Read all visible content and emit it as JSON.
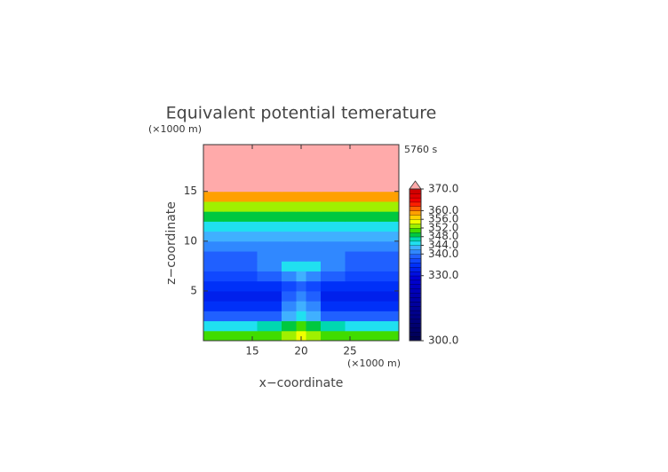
{
  "chart_data": {
    "type": "contour",
    "title": "Equivalent potential temerature",
    "time_label": "5760 s",
    "x_label": "x−coordinate",
    "y_label": "z−coordinate",
    "x_unit": "(×1000 m)",
    "y_unit": "(×1000 m)",
    "xlim": [
      10,
      30
    ],
    "ylim": [
      0,
      19.7
    ],
    "xticks": [
      15,
      20,
      25
    ],
    "yticks": [
      5,
      10,
      15
    ],
    "x": [
      10,
      14,
      17,
      19,
      20,
      21,
      23,
      26,
      30
    ],
    "z": [
      0.5,
      1.5,
      2.5,
      3.5,
      4.5,
      5.5,
      6.5,
      7.5,
      8.5,
      9.5,
      10.5,
      11.5,
      12.5,
      13.5,
      14.5,
      15.5,
      16.5,
      17.5,
      18.5,
      19.5
    ],
    "values": [
      [
        351,
        351,
        351,
        353,
        355,
        353,
        351,
        351,
        351
      ],
      [
        344,
        344,
        346,
        348,
        350,
        348,
        346,
        344,
        344
      ],
      [
        338,
        338,
        339,
        342,
        344,
        342,
        339,
        338,
        338
      ],
      [
        334,
        334,
        335,
        340,
        342,
        340,
        335,
        334,
        334
      ],
      [
        332,
        332,
        333,
        338,
        341,
        338,
        333,
        332,
        332
      ],
      [
        334,
        334,
        335,
        337,
        338,
        337,
        335,
        334,
        334
      ],
      [
        336,
        336,
        338,
        341,
        342,
        341,
        338,
        336,
        336
      ],
      [
        338,
        338,
        340,
        344,
        345,
        344,
        340,
        338,
        338
      ],
      [
        338,
        339,
        340,
        341,
        341,
        341,
        340,
        339,
        338
      ],
      [
        340,
        340,
        341,
        341,
        341,
        341,
        341,
        340,
        340
      ],
      [
        343,
        343,
        343,
        343,
        343,
        343,
        343,
        343,
        343
      ],
      [
        345,
        345,
        345,
        345,
        345,
        345,
        345,
        345,
        345
      ],
      [
        348,
        348,
        348,
        348,
        348,
        348,
        348,
        348,
        348
      ],
      [
        353,
        353,
        353,
        353,
        353,
        353,
        353,
        353,
        353
      ],
      [
        359,
        359,
        359,
        359,
        359,
        359,
        359,
        359,
        359
      ],
      [
        371,
        371,
        371,
        371,
        371,
        371,
        371,
        371,
        371
      ],
      [
        372,
        372,
        372,
        372,
        372,
        372,
        372,
        372,
        372
      ],
      [
        372,
        372,
        372,
        372,
        372,
        372,
        372,
        372,
        372
      ],
      [
        372,
        372,
        372,
        372,
        372,
        372,
        372,
        372,
        372
      ],
      [
        372,
        372,
        372,
        372,
        372,
        372,
        372,
        372,
        372
      ]
    ],
    "colorbar": {
      "lim": [
        300,
        370
      ],
      "levels": [
        300,
        302,
        304,
        306,
        308,
        310,
        312,
        314,
        316,
        318,
        320,
        322,
        324,
        326,
        328,
        330,
        332,
        334,
        336,
        338,
        340,
        342,
        344,
        346,
        348,
        350,
        352,
        354,
        356,
        358,
        360,
        362,
        364,
        366,
        368,
        370
      ],
      "colors": [
        "#000050",
        "#00005c",
        "#000068",
        "#000070",
        "#00007a",
        "#000084",
        "#00008c",
        "#000096",
        "#00009e",
        "#0000a8",
        "#0000b0",
        "#0000ba",
        "#0000c2",
        "#0000cc",
        "#0000d6",
        "#0010e0",
        "#0020ec",
        "#0030f8",
        "#1048ff",
        "#2060ff",
        "#3088ff",
        "#40b0ff",
        "#20e0f0",
        "#00d8b0",
        "#00c840",
        "#40dc00",
        "#a0f000",
        "#f0ff00",
        "#ffd000",
        "#ffa000",
        "#ff6000",
        "#ff2000",
        "#f00000",
        "#e00000",
        "#d00000"
      ],
      "over_color": "#ffaaaa",
      "ticks": [
        {
          "value": 300,
          "label": "300.0"
        },
        {
          "value": 330,
          "label": "330.0"
        },
        {
          "value": 340,
          "label": "340.0"
        },
        {
          "value": 344,
          "label": "344.0"
        },
        {
          "value": 348,
          "label": "348.0"
        },
        {
          "value": 352,
          "label": "352.0"
        },
        {
          "value": 356,
          "label": "356.0"
        },
        {
          "value": 360,
          "label": "360.0"
        },
        {
          "value": 370,
          "label": "370.0"
        }
      ]
    }
  }
}
